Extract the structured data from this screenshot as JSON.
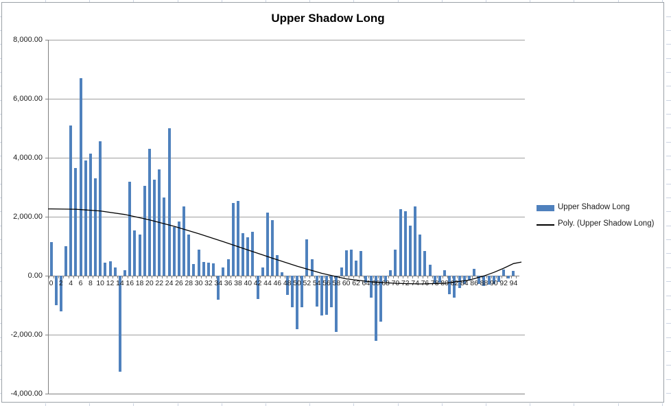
{
  "title": "Upper Shadow Long",
  "legend": {
    "items": [
      {
        "label": "Upper Shadow Long",
        "marker": "bar-swatch"
      },
      {
        "label": "Poly. (Upper Shadow Long)",
        "marker": "line-sample"
      }
    ]
  },
  "colors": {
    "bar": "#4f81bd",
    "trendline": "#000000",
    "gridline": "#9e9e9e",
    "axis": "#7f7f7f",
    "sheet_grid": "#ccd4e3",
    "chart_border": "#9aa0a6"
  },
  "chart_data": {
    "type": "bar",
    "title": "Upper Shadow Long",
    "series_name": "Upper Shadow Long",
    "ylim": [
      -4000,
      8000
    ],
    "y_tick_step": 2000,
    "grid": true,
    "legend_position": "right",
    "y_ticks": [
      {
        "value": 8000,
        "label": "8,000.00"
      },
      {
        "value": 6000,
        "label": "6,000.00"
      },
      {
        "value": 4000,
        "label": "4,000.00"
      },
      {
        "value": 2000,
        "label": "2,000.00"
      },
      {
        "value": 0,
        "label": "0.00"
      },
      {
        "value": -2000,
        "label": "-2,000.00"
      },
      {
        "value": -4000,
        "label": "-4,000.00"
      }
    ],
    "x_tick_labels": [
      "0",
      "2",
      "4",
      "6",
      "8",
      "10",
      "12",
      "14",
      "16",
      "18",
      "20",
      "22",
      "24",
      "26",
      "28",
      "30",
      "32",
      "34",
      "36",
      "38",
      "40",
      "42",
      "44",
      "46",
      "48",
      "50",
      "52",
      "54",
      "56",
      "58",
      "60",
      "62",
      "64",
      "66",
      "68",
      "70",
      "72",
      "74",
      "76",
      "78",
      "80",
      "82",
      "84",
      "86",
      "88",
      "90",
      "92",
      "94"
    ],
    "values": [
      1150,
      -1000,
      -1200,
      1000,
      5100,
      3650,
      6700,
      3900,
      4150,
      3300,
      4550,
      450,
      500,
      280,
      -3250,
      190,
      3200,
      1550,
      1400,
      3050,
      4300,
      3250,
      3600,
      2650,
      5000,
      1650,
      1850,
      2350,
      1400,
      400,
      900,
      470,
      450,
      430,
      -800,
      290,
      560,
      2460,
      2530,
      1450,
      1300,
      1500,
      -780,
      280,
      2150,
      1890,
      700,
      120,
      -650,
      -1050,
      -1800,
      -1050,
      1250,
      560,
      -1030,
      -1330,
      -1310,
      -1070,
      -1900,
      280,
      860,
      890,
      510,
      840,
      -220,
      -730,
      -2200,
      -1550,
      -190,
      200,
      900,
      2250,
      2200,
      1700,
      2350,
      1400,
      840,
      390,
      -260,
      -220,
      200,
      -610,
      -730,
      -400,
      -260,
      -150,
      250,
      -260,
      -340,
      -300,
      -260,
      -190,
      220,
      -80,
      160
    ],
    "trendline": {
      "name": "Poly. (Upper Shadow Long)",
      "points": [
        [
          -0.6,
          2270
        ],
        [
          0,
          2270
        ],
        [
          5,
          2260
        ],
        [
          10,
          2200
        ],
        [
          15,
          2080
        ],
        [
          20,
          1900
        ],
        [
          25,
          1680
        ],
        [
          30,
          1430
        ],
        [
          35,
          1160
        ],
        [
          40,
          880
        ],
        [
          45,
          600
        ],
        [
          50,
          330
        ],
        [
          55,
          90
        ],
        [
          60,
          -100
        ],
        [
          65,
          -200
        ],
        [
          70,
          -250
        ],
        [
          75,
          -270
        ],
        [
          80,
          -250
        ],
        [
          85,
          -140
        ],
        [
          88,
          0
        ],
        [
          90,
          120
        ],
        [
          92,
          260
        ],
        [
          94,
          420
        ],
        [
          95.6,
          470
        ]
      ]
    }
  }
}
